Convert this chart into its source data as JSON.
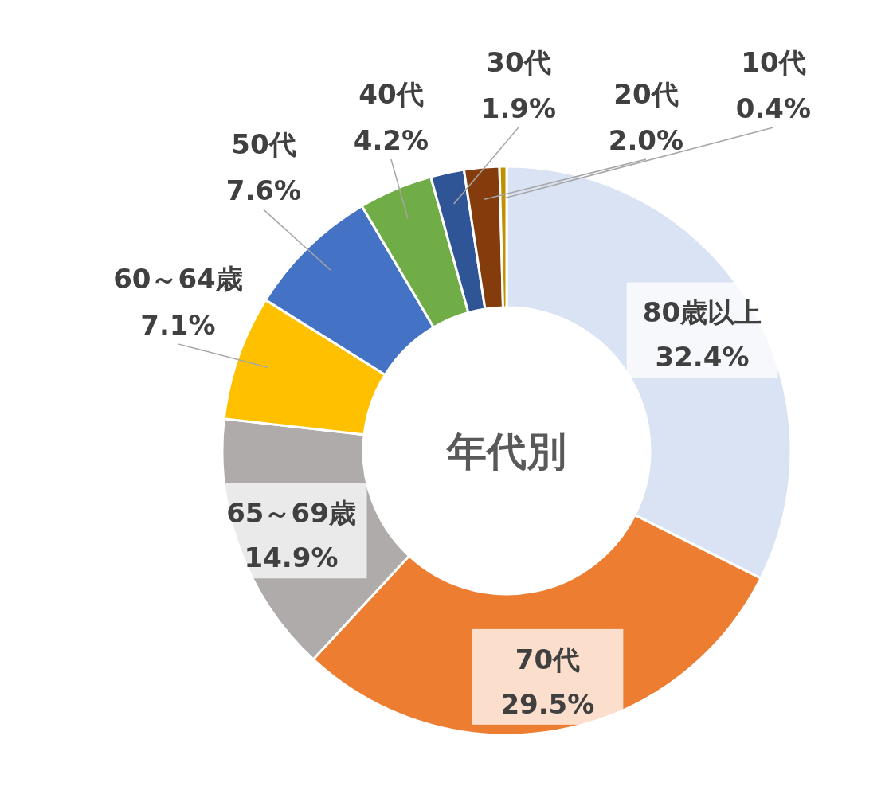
{
  "chart_data": {
    "type": "donut",
    "title": "年代別",
    "categories": [
      "80歳以上",
      "70代",
      "65～69歳",
      "60～64歳",
      "50代",
      "40代",
      "30代",
      "20代",
      "10代"
    ],
    "values": [
      32.4,
      29.5,
      14.9,
      7.1,
      7.6,
      4.2,
      1.9,
      2.0,
      0.4
    ],
    "colors": [
      "#dae3f3",
      "#ed7d31",
      "#afabab",
      "#ffc000",
      "#4472c4",
      "#70ad47",
      "#2f5597",
      "#843c0c",
      "#bf9000"
    ],
    "value_labels": [
      "32.4%",
      "29.5%",
      "14.9%",
      "7.1%",
      "7.6%",
      "4.2%",
      "1.9%",
      "2.0%",
      "0.4%"
    ]
  }
}
